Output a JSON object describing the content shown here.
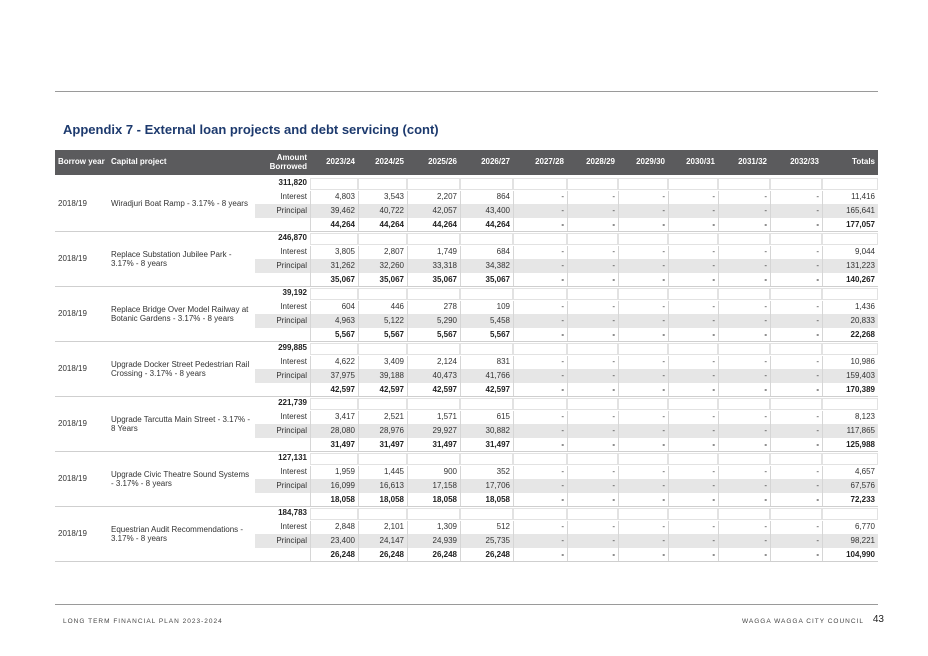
{
  "title": "Appendix 7 - External loan projects and debt servicing (cont)",
  "header": [
    "Borrow year",
    "Capital project",
    "Amount Borrowed",
    "2023/24",
    "2024/25",
    "2025/26",
    "2026/27",
    "2027/28",
    "2028/29",
    "2029/30",
    "2030/31",
    "2031/32",
    "2032/33",
    "Totals"
  ],
  "projects": [
    {
      "year": "2018/19",
      "name": "Wiradjuri Boat Ramp - 3.17% - 8 years",
      "amount": "311,820",
      "interest": {
        "label": "Interest",
        "values": [
          "4,803",
          "3,543",
          "2,207",
          "864",
          "-",
          "-",
          "-",
          "-",
          "-",
          "-",
          "11,416"
        ]
      },
      "principal": {
        "label": "Principal",
        "values": [
          "39,462",
          "40,722",
          "42,057",
          "43,400",
          "-",
          "-",
          "-",
          "-",
          "-",
          "-",
          "165,641"
        ]
      },
      "total": [
        "44,264",
        "44,264",
        "44,264",
        "44,264",
        "-",
        "-",
        "-",
        "-",
        "-",
        "-",
        "177,057"
      ]
    },
    {
      "year": "2018/19",
      "name": "Replace Substation Jubilee Park - 3.17% - 8 years",
      "amount": "246,870",
      "interest": {
        "label": "Interest",
        "values": [
          "3,805",
          "2,807",
          "1,749",
          "684",
          "-",
          "-",
          "-",
          "-",
          "-",
          "-",
          "9,044"
        ]
      },
      "principal": {
        "label": "Principal",
        "values": [
          "31,262",
          "32,260",
          "33,318",
          "34,382",
          "-",
          "-",
          "-",
          "-",
          "-",
          "-",
          "131,223"
        ]
      },
      "total": [
        "35,067",
        "35,067",
        "35,067",
        "35,067",
        "-",
        "-",
        "-",
        "-",
        "-",
        "-",
        "140,267"
      ]
    },
    {
      "year": "2018/19",
      "name": "Replace Bridge Over Model Railway at Botanic Gardens - 3.17% - 8 years",
      "amount": "39,192",
      "interest": {
        "label": "Interest",
        "values": [
          "604",
          "446",
          "278",
          "109",
          "-",
          "-",
          "-",
          "-",
          "-",
          "-",
          "1,436"
        ]
      },
      "principal": {
        "label": "Principal",
        "values": [
          "4,963",
          "5,122",
          "5,290",
          "5,458",
          "-",
          "-",
          "-",
          "-",
          "-",
          "-",
          "20,833"
        ]
      },
      "total": [
        "5,567",
        "5,567",
        "5,567",
        "5,567",
        "-",
        "-",
        "-",
        "-",
        "-",
        "-",
        "22,268"
      ]
    },
    {
      "year": "2018/19",
      "name": "Upgrade Docker Street Pedestrian Rail Crossing - 3.17% - 8 years",
      "amount": "299,885",
      "interest": {
        "label": "Interest",
        "values": [
          "4,622",
          "3,409",
          "2,124",
          "831",
          "-",
          "-",
          "-",
          "-",
          "-",
          "-",
          "10,986"
        ]
      },
      "principal": {
        "label": "Principal",
        "values": [
          "37,975",
          "39,188",
          "40,473",
          "41,766",
          "-",
          "-",
          "-",
          "-",
          "-",
          "-",
          "159,403"
        ]
      },
      "total": [
        "42,597",
        "42,597",
        "42,597",
        "42,597",
        "-",
        "-",
        "-",
        "-",
        "-",
        "-",
        "170,389"
      ]
    },
    {
      "year": "2018/19",
      "name": "Upgrade Tarcutta Main Street - 3.17% - 8 Years",
      "amount": "221,739",
      "interest": {
        "label": "Interest",
        "values": [
          "3,417",
          "2,521",
          "1,571",
          "615",
          "-",
          "-",
          "-",
          "-",
          "-",
          "-",
          "8,123"
        ]
      },
      "principal": {
        "label": "Principal",
        "values": [
          "28,080",
          "28,976",
          "29,927",
          "30,882",
          "-",
          "-",
          "-",
          "-",
          "-",
          "-",
          "117,865"
        ]
      },
      "total": [
        "31,497",
        "31,497",
        "31,497",
        "31,497",
        "-",
        "-",
        "-",
        "-",
        "-",
        "-",
        "125,988"
      ]
    },
    {
      "year": "2018/19",
      "name": "Upgrade Civic Theatre Sound Systems - 3.17% - 8 years",
      "amount": "127,131",
      "interest": {
        "label": "Interest",
        "values": [
          "1,959",
          "1,445",
          "900",
          "352",
          "-",
          "-",
          "-",
          "-",
          "-",
          "-",
          "4,657"
        ]
      },
      "principal": {
        "label": "Principal",
        "values": [
          "16,099",
          "16,613",
          "17,158",
          "17,706",
          "-",
          "-",
          "-",
          "-",
          "-",
          "-",
          "67,576"
        ]
      },
      "total": [
        "18,058",
        "18,058",
        "18,058",
        "18,058",
        "-",
        "-",
        "-",
        "-",
        "-",
        "-",
        "72,233"
      ]
    },
    {
      "year": "2018/19",
      "name": "Equestrian Audit Recommendations - 3.17% - 8 years",
      "amount": "184,783",
      "interest": {
        "label": "Interest",
        "values": [
          "2,848",
          "2,101",
          "1,309",
          "512",
          "-",
          "-",
          "-",
          "-",
          "-",
          "-",
          "6,770"
        ]
      },
      "principal": {
        "label": "Principal",
        "values": [
          "23,400",
          "24,147",
          "24,939",
          "25,735",
          "-",
          "-",
          "-",
          "-",
          "-",
          "-",
          "98,221"
        ]
      },
      "total": [
        "26,248",
        "26,248",
        "26,248",
        "26,248",
        "-",
        "-",
        "-",
        "-",
        "-",
        "-",
        "104,990"
      ]
    }
  ],
  "footer": {
    "left": "LONG TERM FINANCIAL PLAN 2023-2024",
    "right": "WAGGA WAGGA CITY COUNCIL",
    "page": "43"
  }
}
